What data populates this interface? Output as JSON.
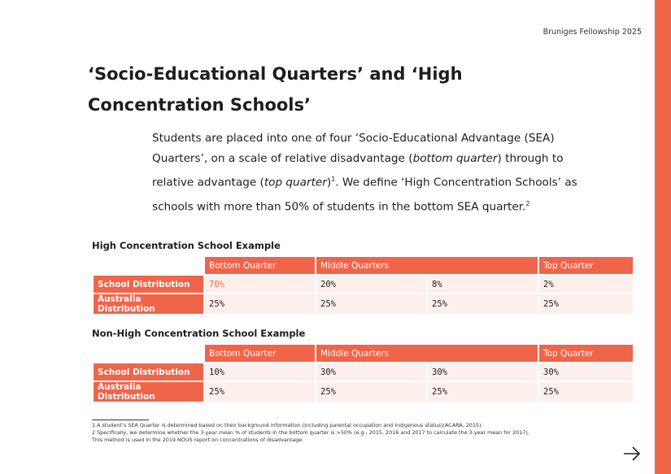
{
  "header": "Bruniges Fellowship 2025",
  "title": "‘Socio-Educational Quarters’ and ‘High Concentration Schools’",
  "intro": [
    "Students are placed into one of four ‘Socio-Educational Advantage (SEA) Quarters’, on a scale of relative disadvantage (",
    "bottom quarter",
    ") through to relative advantage (",
    "top quarter",
    ")",
    "1",
    ". We define ‘High Concentration Schools’ as schools with more than 50% of students in the bottom SEA quarter.",
    "2"
  ],
  "tables": [
    {
      "title": "High Concentration School Example",
      "headers": [
        "Bottom Quarter",
        "Middle Quarters",
        "Top Quarter"
      ],
      "rows": [
        {
          "label": "School Distribution",
          "values": [
            "70%",
            "20%",
            "8%",
            "2%"
          ]
        },
        {
          "label": "Australia Distribution",
          "values": [
            "25%",
            "25%",
            "25%",
            "25%"
          ]
        }
      ]
    },
    {
      "title": "Non-High Concentration School Example",
      "headers": [
        "Bottom Quarter",
        "Middle Quarters",
        "Top Quarter"
      ],
      "rows": [
        {
          "label": "School Distribution",
          "values": [
            "10%",
            "30%",
            "30%",
            "30%"
          ]
        },
        {
          "label": "Australia Distribution",
          "values": [
            "25%",
            "25%",
            "25%",
            "25%"
          ]
        }
      ]
    }
  ],
  "footnotes": [
    "1 A student’s SEA Quarter is determined based on their background information (including parental occupation and Indigenous status)(ACARA, 2015).",
    "2 Specifically, we determine whether the 3-year mean % of students in the bottom quarter is >50% (e.g., 2015, 2016 and 2017 to calculate the 3-year mean for 2017).",
    "This method is used in the 2019 NOUS report on concentrations of disadvantage."
  ]
}
